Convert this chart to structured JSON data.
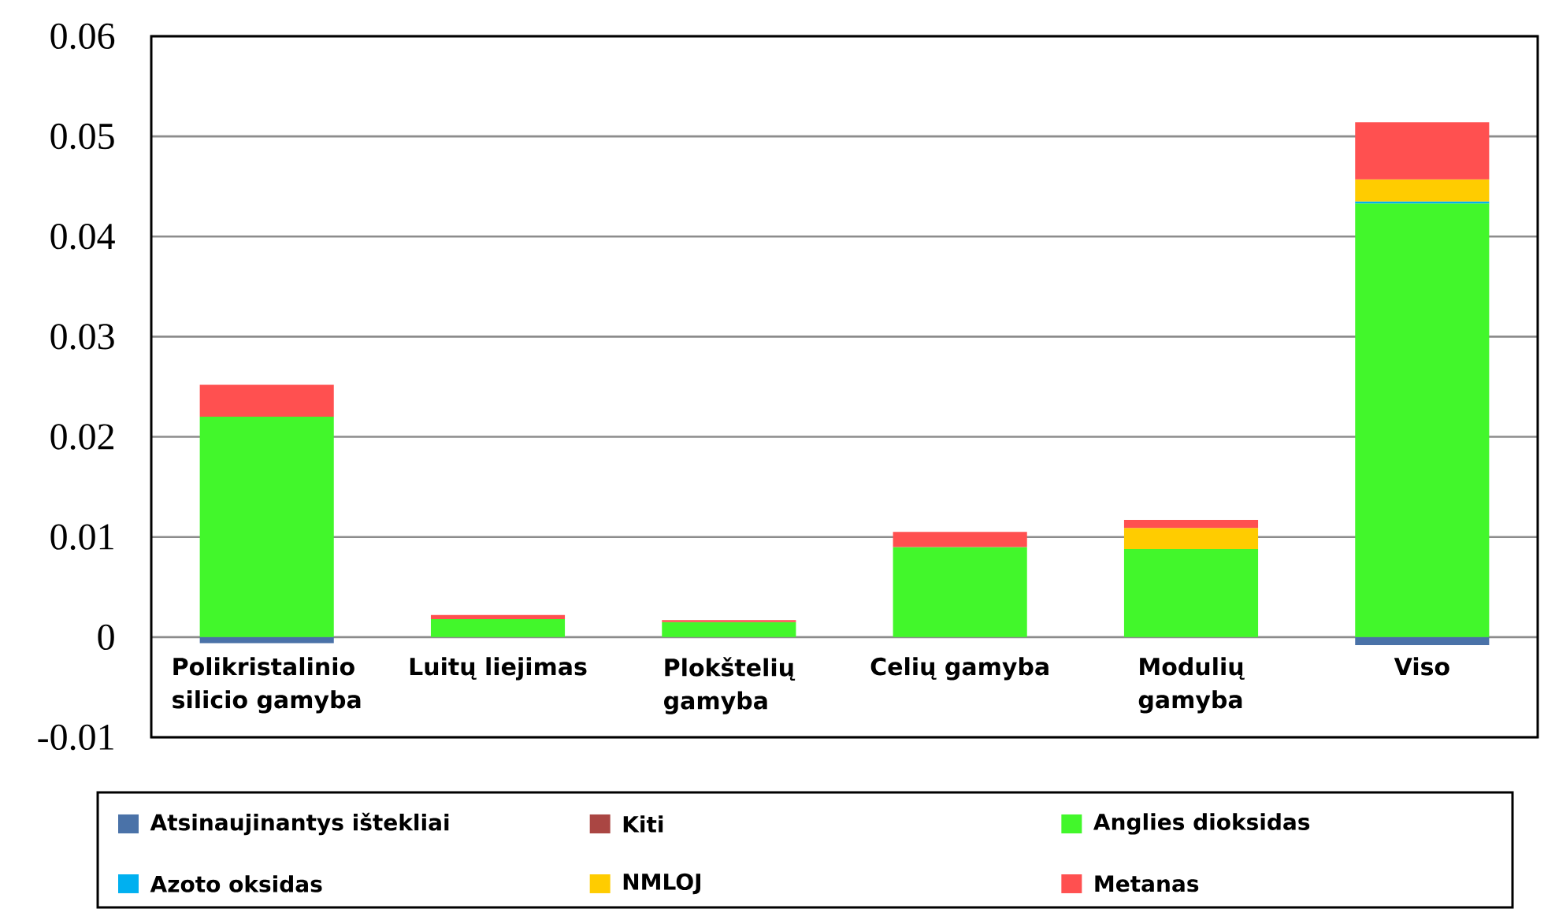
{
  "chart_data": {
    "type": "bar",
    "stacked": true,
    "categories": [
      "Polikristalinio silicio gamyba",
      "Luitų liejimas",
      "Plokštelių gamyba",
      "Celių gamyba",
      "Modulių gamyba",
      "Viso"
    ],
    "series": [
      {
        "name": "Atsinaujinantys ištekliai",
        "color": "#4a72a8",
        "values": [
          -0.0006,
          null,
          null,
          null,
          null,
          -0.0008
        ]
      },
      {
        "name": "Kiti",
        "color": "#aa4643",
        "values": [
          null,
          null,
          null,
          null,
          null,
          null
        ]
      },
      {
        "name": "Anglies dioksidas",
        "color": "#42f72b",
        "values": [
          0.022,
          0.0018,
          0.0015,
          0.009,
          0.0088,
          0.0433
        ]
      },
      {
        "name": "Azoto oksidas",
        "color": "#00b0f0",
        "values": [
          null,
          null,
          null,
          null,
          null,
          0.0002
        ]
      },
      {
        "name": "NMLOJ",
        "color": "#ffcc00",
        "values": [
          null,
          null,
          null,
          null,
          0.0021,
          0.0022
        ]
      },
      {
        "name": "Metanas",
        "color": "#ff5050",
        "values": [
          0.0032,
          0.0004,
          0.0002,
          0.0015,
          0.0008,
          0.0057
        ]
      }
    ],
    "ylim": [
      -0.01,
      0.06
    ],
    "yticks": [
      -0.01,
      0,
      0.01,
      0.02,
      0.03,
      0.04,
      0.05,
      0.06
    ],
    "grid": "y",
    "legend": "bottom"
  }
}
